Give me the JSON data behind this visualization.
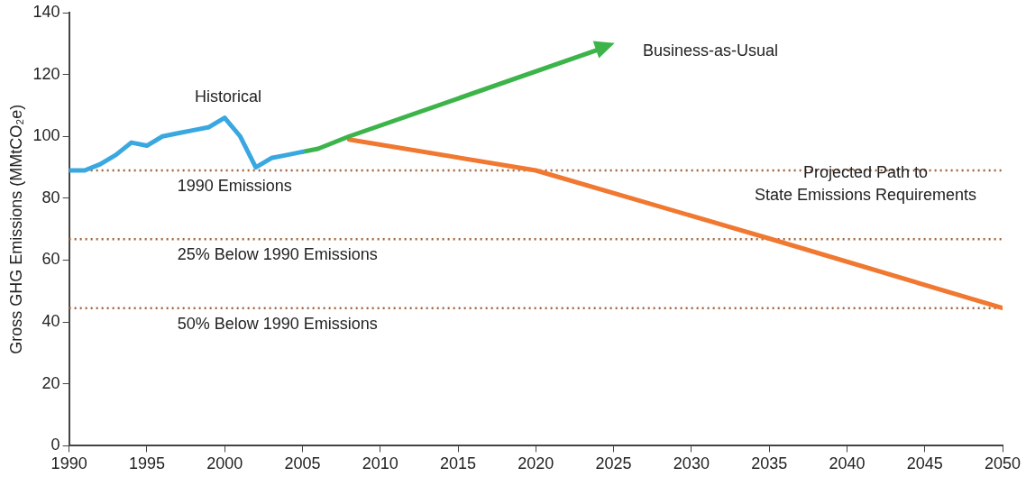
{
  "chart_data": {
    "type": "line",
    "ylabel": "Gross GHG Emissions (MMtCO₂e)",
    "xlim": [
      1990,
      2050
    ],
    "xticks": [
      1990,
      1995,
      2000,
      2005,
      2010,
      2015,
      2020,
      2025,
      2030,
      2035,
      2040,
      2045,
      2050
    ],
    "ylim": [
      0,
      140
    ],
    "yticks": [
      0,
      20,
      40,
      60,
      80,
      100,
      120,
      140
    ],
    "grid": false,
    "legend": false,
    "marker": "none",
    "line_style": "solid",
    "series": [
      {
        "color": "#3aa8e0",
        "x": [
          1990,
          1991,
          1992,
          1993,
          1994,
          1995,
          1996,
          1997,
          1998,
          1999,
          2000,
          2001,
          2002,
          2003,
          2004,
          2005
        ],
        "values": [
          89,
          89,
          91,
          94,
          98,
          97,
          100,
          101,
          102,
          103,
          106,
          100,
          90,
          93,
          94,
          95
        ]
      },
      {
        "color": "#3cb44a",
        "x": [
          2005,
          2006,
          2008,
          2024
        ],
        "values": [
          95,
          96,
          100,
          128
        ]
      },
      {
        "color": "#f07830",
        "x": [
          2008,
          2020,
          2035,
          2050
        ],
        "values": [
          99,
          89,
          67,
          44.5
        ]
      }
    ],
    "ref_lines": [
      {
        "axis": "y",
        "value": 89,
        "label": "1990 Emissions",
        "color": "#a0643c",
        "line_style": "dotted"
      },
      {
        "axis": "y",
        "value": 66.75,
        "label": "25% Below 1990 Emissions",
        "color": "#a0643c",
        "line_style": "dotted"
      },
      {
        "axis": "y",
        "value": 44.5,
        "label": "50% Below 1990 Emissions",
        "color": "#a0643c",
        "line_style": "dotted"
      }
    ],
    "annotations": [
      "Historical",
      "Business-as-Usual",
      "Projected Path to\nState Emissions Requirements"
    ]
  }
}
